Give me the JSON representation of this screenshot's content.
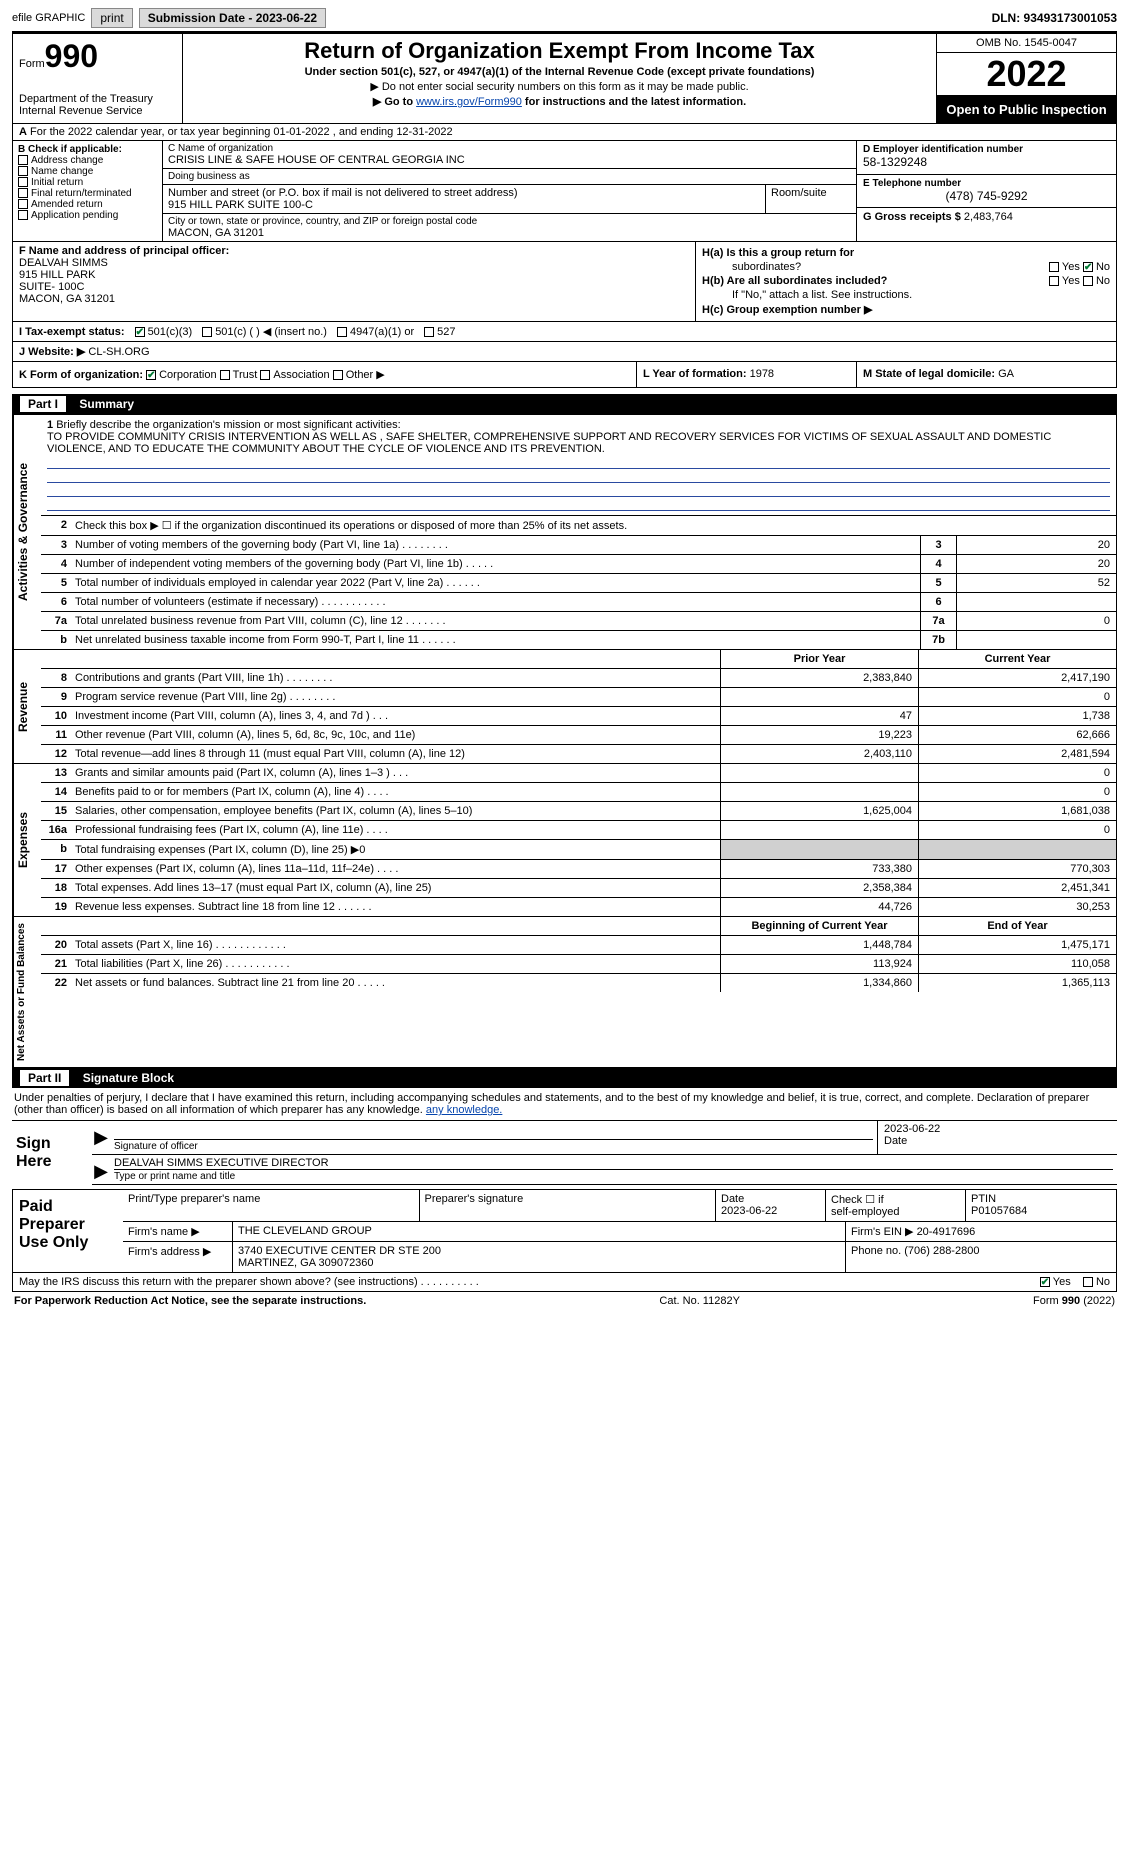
{
  "colors": {
    "link": "#0645ad",
    "check_green": "#007a33",
    "black": "#000000",
    "white": "#ffffff",
    "shade": "#d0d0d0",
    "underline_blue": "#2a4aa0",
    "btn_gray": "#dadada"
  },
  "fonts": {
    "base_pt": 9,
    "title_pt": 22,
    "formno_pt": 32,
    "year_pt": 36
  },
  "topbar": {
    "efile": "efile GRAPHIC",
    "print": "print",
    "submission": "Submission Date - 2023-06-22",
    "dln": "DLN: 93493173001053"
  },
  "header": {
    "form_label_small": "Form",
    "form_no": "990",
    "dept": "Department of the Treasury",
    "irs": "Internal Revenue Service",
    "title": "Return of Organization Exempt From Income Tax",
    "subtitle": "Under section 501(c), 527, or 4947(a)(1) of the Internal Revenue Code (except private foundations)",
    "note1": "▶ Do not enter social security numbers on this form as it may be made public.",
    "note2_pre": "▶ Go to ",
    "note2_link": "www.irs.gov/Form990",
    "note2_post": " for instructions and the latest information.",
    "omb": "OMB No. 1545-0047",
    "year": "2022",
    "open": "Open to Public Inspection"
  },
  "row_a": {
    "prefix_bold": "A",
    "text": " For the 2022 calendar year, or tax year beginning 01-01-2022    , and ending 12-31-2022"
  },
  "col_b": {
    "label": "B Check if applicable:",
    "items": [
      "Address change",
      "Name change",
      "Initial return",
      "Final return/terminated",
      "Amended return",
      "Application pending"
    ]
  },
  "col_c": {
    "name_lbl": "C Name of organization",
    "name_val": "CRISIS LINE & SAFE HOUSE OF CENTRAL GEORGIA INC",
    "dba_lbl": "Doing business as",
    "dba_val": "",
    "street_lbl": "Number and street (or P.O. box if mail is not delivered to street address)",
    "street_val": "915 HILL PARK SUITE 100-C",
    "room_lbl": "Room/suite",
    "city_lbl": "City or town, state or province, country, and ZIP or foreign postal code",
    "city_val": "MACON, GA  31201"
  },
  "col_d": {
    "d_lbl": "D Employer identification number",
    "d_val": "58-1329248",
    "e_lbl": "E Telephone number",
    "e_val": "(478) 745-9292",
    "g_lbl": "G Gross receipts $",
    "g_val": "2,483,764"
  },
  "col_f": {
    "lbl": "F  Name and address of principal officer:",
    "name": "DEALVAH SIMMS",
    "l1": "915 HILL PARK",
    "l2": "SUITE- 100C",
    "l3": "MACON, GA  31201"
  },
  "col_h": {
    "ha": "H(a)  Is this a group return for",
    "ha2": "subordinates?",
    "yes": "Yes",
    "no": "No",
    "hb": "H(b)  Are all subordinates included?",
    "hb2": "If \"No,\" attach a list. See instructions.",
    "hc": "H(c)  Group exemption number ▶"
  },
  "row_i": {
    "lbl": "I    Tax-exempt status:",
    "c3": "501(c)(3)",
    "c": "501(c) (   ) ◀ (insert no.)",
    "a1": "4947(a)(1) or",
    "s527": "527"
  },
  "row_j": {
    "lbl": "J   Website: ▶",
    "val": "CL-SH.ORG"
  },
  "row_k": {
    "k_lbl": "K Form of organization:",
    "corp": "Corporation",
    "trust": "Trust",
    "assoc": "Association",
    "other": "Other ▶",
    "l_lbl": "L Year of formation:",
    "l_val": "1978",
    "m_lbl": "M State of legal domicile:",
    "m_val": "GA"
  },
  "part1": {
    "num": "Part I",
    "title": "Summary"
  },
  "side_labels": {
    "ag": "Activities & Governance",
    "rev": "Revenue",
    "exp": "Expenses",
    "nafb": "Net Assets or Fund Balances"
  },
  "mission": {
    "num": "1",
    "lbl": "Briefly describe the organization's mission or most significant activities:",
    "text": "TO PROVIDE COMMUNITY CRISIS INTERVENTION AS WELL AS , SAFE SHELTER, COMPREHENSIVE SUPPORT AND RECOVERY SERVICES FOR VICTIMS OF SEXUAL ASSAULT AND DOMESTIC VIOLENCE, AND TO EDUCATE THE COMMUNITY ABOUT THE CYCLE OF VIOLENCE AND ITS PREVENTION."
  },
  "ag_rows": [
    {
      "n": "2",
      "d": "Check this box ▶ ☐  if the organization discontinued its operations or disposed of more than 25% of its net assets.",
      "b": "",
      "v": ""
    },
    {
      "n": "3",
      "d": "Number of voting members of the governing body (Part VI, line 1a)   .    .    .    .    .    .    .    .",
      "b": "3",
      "v": "20"
    },
    {
      "n": "4",
      "d": "Number of independent voting members of the governing body (Part VI, line 1b)   .    .    .    .    .",
      "b": "4",
      "v": "20"
    },
    {
      "n": "5",
      "d": "Total number of individuals employed in calendar year 2022 (Part V, line 2a)   .    .    .    .    .    .",
      "b": "5",
      "v": "52"
    },
    {
      "n": "6",
      "d": "Total number of volunteers (estimate if necessary)   .    .    .    .    .    .    .    .    .    .    .",
      "b": "6",
      "v": ""
    },
    {
      "n": "7a",
      "d": "Total unrelated business revenue from Part VIII, column (C), line 12   .    .    .    .    .    .    .",
      "b": "7a",
      "v": "0"
    },
    {
      "n": "b",
      "d": "Net unrelated business taxable income from Form 990-T, Part I, line 11   .    .    .    .    .    .",
      "b": "7b",
      "v": ""
    }
  ],
  "two_hdr": {
    "prior": "Prior Year",
    "curr": "Current Year"
  },
  "rev_rows": [
    {
      "n": "8",
      "d": "Contributions and grants (Part VIII, line 1h)   .    .    .    .    .    .    .    .",
      "p": "2,383,840",
      "c": "2,417,190"
    },
    {
      "n": "9",
      "d": "Program service revenue (Part VIII, line 2g)   .    .    .    .    .    .    .    .",
      "p": "",
      "c": "0"
    },
    {
      "n": "10",
      "d": "Investment income (Part VIII, column (A), lines 3, 4, and 7d )   .    .    .",
      "p": "47",
      "c": "1,738"
    },
    {
      "n": "11",
      "d": "Other revenue (Part VIII, column (A), lines 5, 6d, 8c, 9c, 10c, and 11e)",
      "p": "19,223",
      "c": "62,666"
    },
    {
      "n": "12",
      "d": "Total revenue—add lines 8 through 11 (must equal Part VIII, column (A), line 12)",
      "p": "2,403,110",
      "c": "2,481,594"
    }
  ],
  "exp_rows": [
    {
      "n": "13",
      "d": "Grants and similar amounts paid (Part IX, column (A), lines 1–3 )   .    .    .",
      "p": "",
      "c": "0"
    },
    {
      "n": "14",
      "d": "Benefits paid to or for members (Part IX, column (A), line 4)   .    .    .    .",
      "p": "",
      "c": "0"
    },
    {
      "n": "15",
      "d": "Salaries, other compensation, employee benefits (Part IX, column (A), lines 5–10)",
      "p": "1,625,004",
      "c": "1,681,038"
    },
    {
      "n": "16a",
      "d": "Professional fundraising fees (Part IX, column (A), line 11e)   .    .    .    .",
      "p": "",
      "c": "0"
    },
    {
      "n": "b",
      "d": "Total fundraising expenses (Part IX, column (D), line 25) ▶0",
      "p": "SHADE",
      "c": "SHADE"
    },
    {
      "n": "17",
      "d": "Other expenses (Part IX, column (A), lines 11a–11d, 11f–24e)   .    .    .    .",
      "p": "733,380",
      "c": "770,303"
    },
    {
      "n": "18",
      "d": "Total expenses. Add lines 13–17 (must equal Part IX, column (A), line 25)",
      "p": "2,358,384",
      "c": "2,451,341"
    },
    {
      "n": "19",
      "d": "Revenue less expenses. Subtract line 18 from line 12   .    .    .    .    .    .",
      "p": "44,726",
      "c": "30,253"
    }
  ],
  "na_hdr": {
    "prior": "Beginning of Current Year",
    "curr": "End of Year"
  },
  "na_rows": [
    {
      "n": "20",
      "d": "Total assets (Part X, line 16)   .    .    .    .    .    .    .    .    .    .    .    .",
      "p": "1,448,784",
      "c": "1,475,171"
    },
    {
      "n": "21",
      "d": "Total liabilities (Part X, line 26)   .    .    .    .    .    .    .    .    .    .    .",
      "p": "113,924",
      "c": "110,058"
    },
    {
      "n": "22",
      "d": "Net assets or fund balances. Subtract line 21 from line 20   .    .    .    .    .",
      "p": "1,334,860",
      "c": "1,365,113"
    }
  ],
  "part2": {
    "num": "Part II",
    "title": "Signature Block"
  },
  "sig_intro": "Under penalties of perjury, I declare that I have examined this return, including accompanying schedules and statements, and to the best of my knowledge and belief, it is true, correct, and complete. Declaration of preparer (other than officer) is based on all information of which preparer has any knowledge.",
  "sign": {
    "label": "Sign Here",
    "sig_lbl": "Signature of officer",
    "date_val": "2023-06-22",
    "date_lbl": "Date",
    "name_val": "DEALVAH SIMMS  EXECUTIVE DIRECTOR",
    "name_lbl": "Type or print name and title"
  },
  "paid": {
    "label": "Paid Preparer Use Only",
    "h1": "Print/Type preparer's name",
    "h2": "Preparer's signature",
    "h3": "Date",
    "h3v": "2023-06-22",
    "h4a": "Check ☐ if",
    "h4b": "self-employed",
    "h5a": "PTIN",
    "h5b": "P01057684",
    "firm_name_lbl": "Firm's name    ▶",
    "firm_name": "THE CLEVELAND GROUP",
    "firm_ein_lbl": "Firm's EIN ▶",
    "firm_ein": "20-4917696",
    "firm_addr_lbl": "Firm's address ▶",
    "firm_addr1": "3740 EXECUTIVE CENTER DR STE 200",
    "firm_addr2": "MARTINEZ, GA  309072360",
    "phone_lbl": "Phone no.",
    "phone": "(706) 288-2800"
  },
  "may": {
    "text": "May the IRS discuss this return with the preparer shown above? (see instructions)   .    .    .    .    .    .    .    .    .    .",
    "yes": "Yes",
    "no": "No"
  },
  "footer": {
    "left": "For Paperwork Reduction Act Notice, see the separate instructions.",
    "mid": "Cat. No. 11282Y",
    "right_a": "Form ",
    "right_b": "990",
    "right_c": " (2022)"
  }
}
